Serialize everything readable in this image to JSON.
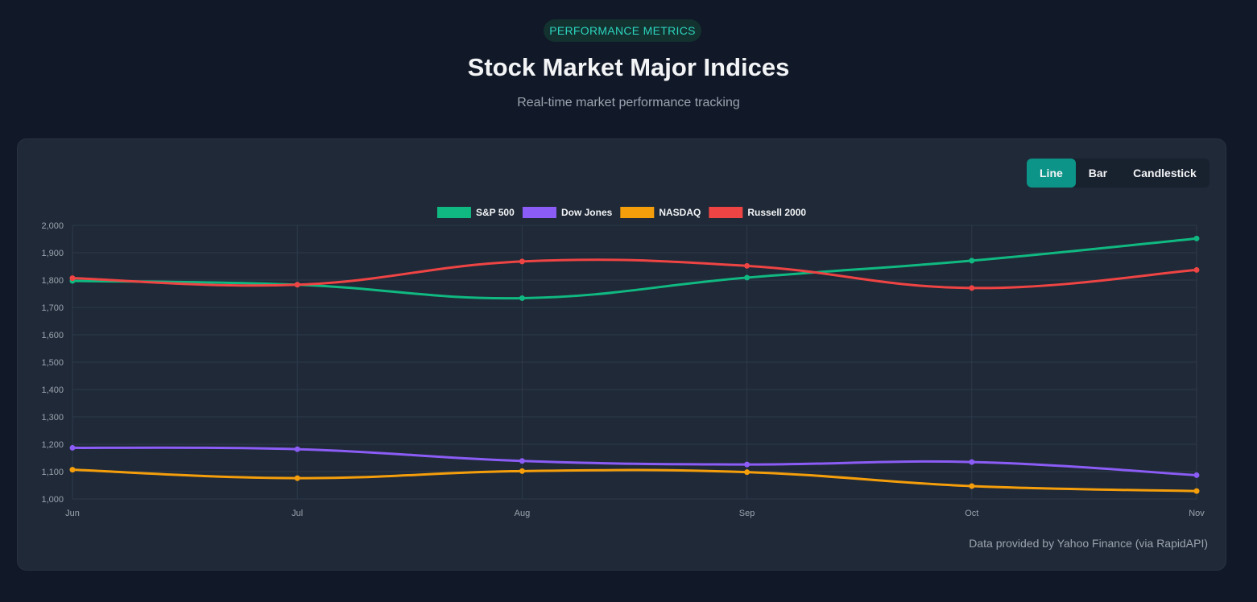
{
  "header": {
    "badge": "PERFORMANCE METRICS",
    "title": "Stock Market Major Indices",
    "subtitle": "Real-time market performance tracking"
  },
  "toggle": {
    "options": [
      "Line",
      "Bar",
      "Candlestick"
    ],
    "active": "Line"
  },
  "footer": "Data provided by Yahoo Finance (via RapidAPI)",
  "colors": {
    "background": "#111827",
    "card": "#1f2937",
    "accent": "#0d9488"
  },
  "chart_data": {
    "type": "line",
    "categories": [
      "Jun",
      "Jul",
      "Aug",
      "Sep",
      "Oct",
      "Nov"
    ],
    "ylim": [
      1000,
      2000
    ],
    "yticks": [
      1000,
      1100,
      1200,
      1300,
      1400,
      1500,
      1600,
      1700,
      1800,
      1900,
      2000
    ],
    "grid": true,
    "legend_position": "top",
    "series": [
      {
        "name": "S&P 500",
        "color": "#10b981",
        "values": [
          1797,
          1783,
          1734,
          1809,
          1871,
          1952
        ]
      },
      {
        "name": "Dow Jones",
        "color": "#8b5cf6",
        "values": [
          1187,
          1182,
          1139,
          1126,
          1135,
          1087
        ]
      },
      {
        "name": "NASDAQ",
        "color": "#f59e0b",
        "values": [
          1107,
          1076,
          1102,
          1098,
          1047,
          1029
        ]
      },
      {
        "name": "Russell 2000",
        "color": "#ef4444",
        "values": [
          1807,
          1783,
          1868,
          1852,
          1771,
          1837
        ]
      }
    ]
  }
}
